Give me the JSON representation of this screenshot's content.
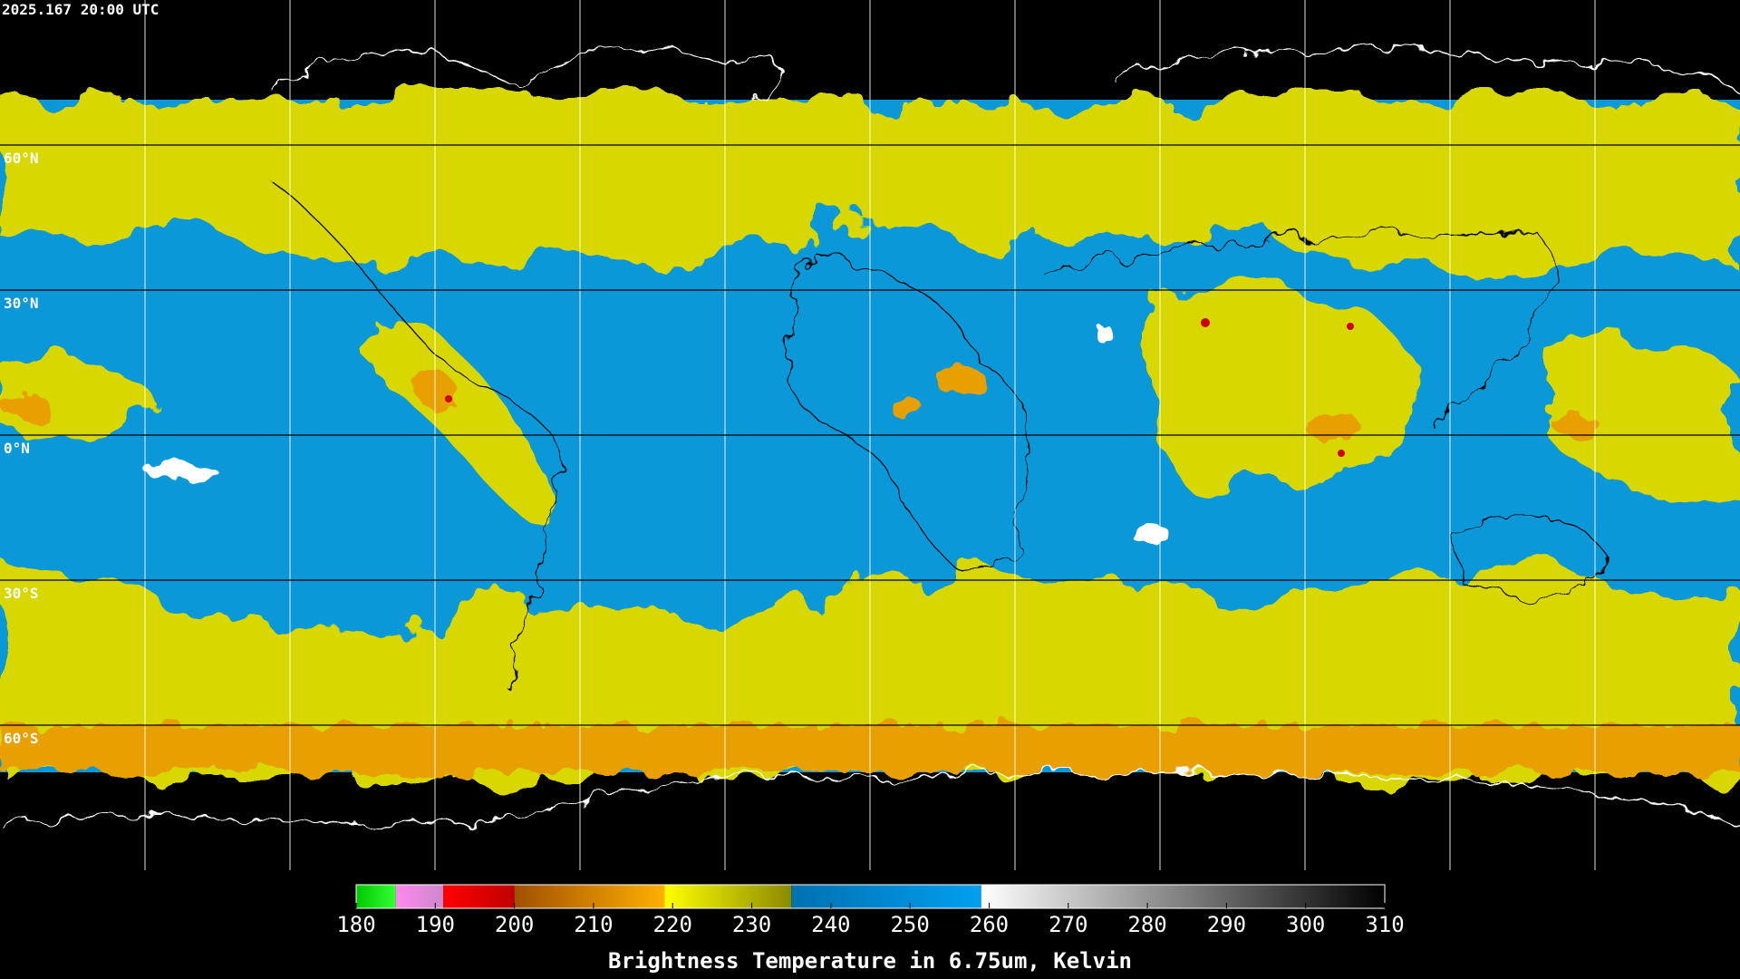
{
  "header": {
    "timestamp": "2025.167 20:00 UTC"
  },
  "map": {
    "latitudes": [
      {
        "value": 60,
        "label": "60°N"
      },
      {
        "value": 30,
        "label": "30°N"
      },
      {
        "value": 0,
        "label": "0°N"
      },
      {
        "value": -30,
        "label": "30°S"
      },
      {
        "value": -60,
        "label": "60°S"
      }
    ],
    "longitudes": [
      -150,
      -120,
      -90,
      -60,
      -30,
      0,
      30,
      60,
      90,
      120,
      150
    ]
  },
  "colorbar": {
    "title": "Brightness Temperature in 6.75um, Kelvin",
    "range": [
      180,
      310
    ],
    "ticks": [
      180,
      190,
      200,
      210,
      220,
      230,
      240,
      250,
      260,
      270,
      280,
      290,
      300,
      310
    ],
    "segments": [
      {
        "from": 180,
        "to": 185,
        "colors": [
          "#00c800",
          "#33ff33"
        ]
      },
      {
        "from": 185,
        "to": 191,
        "colors": [
          "#ff88ee",
          "#cc88cc"
        ]
      },
      {
        "from": 191,
        "to": 200,
        "colors": [
          "#ff0000",
          "#c00000"
        ]
      },
      {
        "from": 200,
        "to": 219,
        "colors": [
          "#a05000",
          "#ffb000"
        ]
      },
      {
        "from": 219,
        "to": 235,
        "colors": [
          "#ffff00",
          "#8a8a00"
        ]
      },
      {
        "from": 235,
        "to": 259,
        "colors": [
          "#0070b0",
          "#00a0f0"
        ]
      },
      {
        "from": 259,
        "to": 310,
        "colors": [
          "#ffffff",
          "#000000"
        ]
      }
    ]
  }
}
